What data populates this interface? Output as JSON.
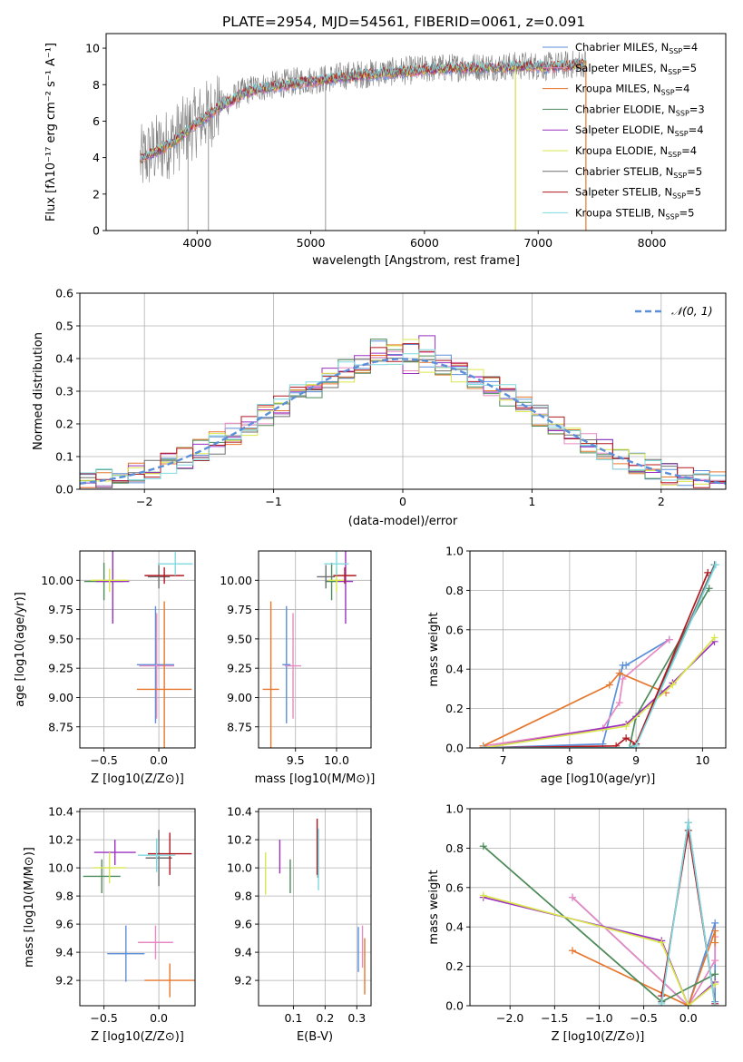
{
  "figure_title": "PLATE=2954, MJD=54561, FIBERID=0061, z=0.091",
  "colors": {
    "Chabrier MILES": "#5b8fd9",
    "Salpeter MILES": "#e78ac3",
    "Kroupa MILES": "#e6772d",
    "Chabrier ELODIE": "#4d8a5a",
    "Salpeter ELODIE": "#9b30c0",
    "Kroupa ELODIE": "#d9e64c",
    "Chabrier STELIB": "#6e6e6e",
    "Salpeter STELIB": "#b01820",
    "Kroupa STELIB": "#7fd9e0"
  },
  "chart_data": [
    {
      "id": "spectrum",
      "type": "line",
      "title": "PLATE=2954, MJD=54561, FIBERID=0061, z=0.091",
      "xlabel": "wavelength [Angstrom, rest frame]",
      "ylabel": "Flux [fλ10⁻¹⁷ erg cm⁻² s⁻¹ A⁻¹]",
      "xlim": [
        3200,
        8650
      ],
      "ylim": [
        0,
        10.8
      ],
      "xticks": [
        4000,
        5000,
        6000,
        7000,
        8000
      ],
      "yticks": [
        0,
        2,
        4,
        6,
        8,
        10
      ],
      "grid": false,
      "legend_position": "right",
      "legend": [
        "Chabrier MILES, N_SSP=4",
        "Salpeter MILES, N_SSP=5",
        "Kroupa MILES, N_SSP=4",
        "Chabrier ELODIE, N_SSP=3",
        "Salpeter ELODIE, N_SSP=4",
        "Kroupa ELODIE, N_SSP=4",
        "Chabrier STELIB, N_SSP=5",
        "Salpeter STELIB, N_SSP=5",
        "Kroupa STELIB, N_SSP=5"
      ],
      "data_x": [
        3500,
        3600,
        3700,
        3800,
        3900,
        4000,
        4100,
        4200,
        4300,
        4400,
        4500,
        4700,
        4900,
        5100,
        5300,
        5500,
        5700,
        5900,
        6100,
        6300,
        6500,
        6700,
        6900,
        7100,
        7300,
        7420
      ],
      "data_y": [
        3.8,
        4.3,
        4.6,
        5.0,
        5.5,
        6.0,
        6.4,
        6.9,
        7.2,
        7.6,
        7.8,
        8.0,
        8.2,
        8.3,
        8.5,
        8.6,
        8.7,
        8.8,
        8.9,
        8.95,
        9.0,
        9.0,
        9.05,
        9.0,
        9.1,
        9.2
      ],
      "model_x": [
        3500,
        3600,
        3700,
        3800,
        3900,
        4000,
        4100,
        4200,
        4300,
        4400,
        4500,
        4700,
        4900,
        5100,
        5300,
        5500,
        5700,
        5900,
        6100,
        6300,
        6500,
        6700,
        6900,
        7100,
        7300,
        7420
      ],
      "model_y": [
        3.9,
        4.2,
        4.5,
        4.9,
        5.4,
        5.9,
        6.3,
        6.8,
        7.1,
        7.5,
        7.7,
        7.9,
        8.1,
        8.25,
        8.4,
        8.55,
        8.65,
        8.75,
        8.85,
        8.9,
        8.95,
        8.95,
        9.0,
        8.95,
        9.05,
        9.1
      ]
    },
    {
      "id": "residuals",
      "type": "line",
      "xlabel": "(data-model)/error",
      "ylabel": "Normed distribution",
      "xlim": [
        -2.5,
        2.5
      ],
      "ylim": [
        0,
        0.6
      ],
      "xticks": [
        -2,
        -1,
        0,
        1,
        2
      ],
      "yticks": [
        0.0,
        0.1,
        0.2,
        0.3,
        0.4,
        0.5,
        0.6
      ],
      "grid": true,
      "legend_position": "top-right",
      "legend": [
        "𝒩(0, 1)"
      ]
    },
    {
      "id": "age_vs_Z",
      "type": "scatter",
      "xlabel": "Z [log10(Z/Z⊙)]",
      "ylabel": "age  [log10(age/yr)]",
      "xlim": [
        -0.72,
        0.33
      ],
      "ylim": [
        8.57,
        10.25
      ],
      "xticks": [
        -0.5,
        0.0
      ],
      "yticks": [
        8.75,
        9.0,
        9.25,
        9.5,
        9.75,
        10.0
      ],
      "grid": true,
      "points": [
        {
          "model": "Chabrier MILES",
          "x": -0.03,
          "y": 9.28,
          "xerr": 0.17,
          "yerr": 0.5
        },
        {
          "model": "Salpeter MILES",
          "x": -0.02,
          "y": 9.27,
          "xerr": 0.16,
          "yerr": 0.45
        },
        {
          "model": "Kroupa MILES",
          "x": 0.05,
          "y": 9.07,
          "xerr": 0.25,
          "yerr": 0.75
        },
        {
          "model": "Chabrier ELODIE",
          "x": -0.5,
          "y": 9.99,
          "xerr": 0.18,
          "yerr": 0.16
        },
        {
          "model": "Salpeter ELODIE",
          "x": -0.42,
          "y": 9.99,
          "xerr": 0.15,
          "yerr": 0.36
        },
        {
          "model": "Kroupa ELODIE",
          "x": -0.45,
          "y": 10.0,
          "xerr": 0.17,
          "yerr": 0.1
        },
        {
          "model": "Chabrier STELIB",
          "x": 0.0,
          "y": 10.03,
          "xerr": 0.1,
          "yerr": 0.1
        },
        {
          "model": "Salpeter STELIB",
          "x": 0.05,
          "y": 10.04,
          "xerr": 0.18,
          "yerr": 0.07
        },
        {
          "model": "Kroupa STELIB",
          "x": 0.15,
          "y": 10.14,
          "xerr": 0.16,
          "yerr": 0.1
        }
      ]
    },
    {
      "id": "age_vs_mass",
      "type": "scatter",
      "xlabel": "mass [log10(M/M⊙)]",
      "ylabel": "",
      "xlim": [
        9.05,
        10.42
      ],
      "ylim": [
        8.57,
        10.25
      ],
      "xticks": [
        9.5,
        10.0
      ],
      "yticks": [
        8.75,
        9.0,
        9.25,
        9.5,
        9.75,
        10.0
      ],
      "grid": true,
      "points": [
        {
          "model": "Chabrier MILES",
          "x": 9.39,
          "y": 9.28,
          "xerr": 0.05,
          "yerr": 0.5
        },
        {
          "model": "Salpeter MILES",
          "x": 9.47,
          "y": 9.27,
          "xerr": 0.1,
          "yerr": 0.45
        },
        {
          "model": "Kroupa MILES",
          "x": 9.2,
          "y": 9.07,
          "xerr": 0.1,
          "yerr": 0.75
        },
        {
          "model": "Chabrier ELODIE",
          "x": 9.94,
          "y": 9.99,
          "xerr": 0.08,
          "yerr": 0.16
        },
        {
          "model": "Salpeter ELODIE",
          "x": 10.11,
          "y": 9.99,
          "xerr": 0.09,
          "yerr": 0.36
        },
        {
          "model": "Kroupa ELODIE",
          "x": 10.0,
          "y": 10.0,
          "xerr": 0.1,
          "yerr": 0.1
        },
        {
          "model": "Chabrier STELIB",
          "x": 9.87,
          "y": 10.03,
          "xerr": 0.11,
          "yerr": 0.1
        },
        {
          "model": "Salpeter STELIB",
          "x": 10.1,
          "y": 10.04,
          "xerr": 0.14,
          "yerr": 0.07
        },
        {
          "model": "Kroupa STELIB",
          "x": 10.0,
          "y": 10.14,
          "xerr": 0.15,
          "yerr": 0.1
        }
      ]
    },
    {
      "id": "massweight_vs_age",
      "type": "line",
      "xlabel": "age  [log10(age/yr)]",
      "ylabel": "mass weight",
      "xlim": [
        6.5,
        10.35
      ],
      "ylim": [
        0,
        1.0
      ],
      "xticks": [
        7,
        8,
        9,
        10
      ],
      "yticks": [
        0.0,
        0.2,
        0.4,
        0.6,
        0.8,
        1.0
      ],
      "grid": true,
      "series": [
        {
          "model": "Chabrier MILES",
          "x": [
            6.7,
            8.5,
            8.8,
            8.85,
            9.5
          ],
          "y": [
            0.0,
            0.02,
            0.42,
            0.42,
            0.55
          ]
        },
        {
          "model": "Salpeter MILES",
          "x": [
            6.7,
            8.5,
            8.75,
            8.8,
            9.5
          ],
          "y": [
            0.01,
            0.1,
            0.23,
            0.35,
            0.55
          ]
        },
        {
          "model": "Kroupa MILES",
          "x": [
            6.7,
            8.6,
            8.75,
            9.45
          ],
          "y": [
            0.01,
            0.32,
            0.38,
            0.28
          ]
        },
        {
          "model": "Chabrier ELODIE",
          "x": [
            6.7,
            8.9,
            9.0,
            10.1
          ],
          "y": [
            0.0,
            0.0,
            0.16,
            0.81
          ]
        },
        {
          "model": "Salpeter ELODIE",
          "x": [
            6.7,
            8.85,
            9.55,
            10.18
          ],
          "y": [
            0.0,
            0.12,
            0.33,
            0.54
          ]
        },
        {
          "model": "Kroupa ELODIE",
          "x": [
            6.7,
            8.85,
            9.55,
            10.18
          ],
          "y": [
            0.0,
            0.11,
            0.32,
            0.56
          ]
        },
        {
          "model": "Chabrier STELIB",
          "x": [
            6.7,
            8.9,
            9.0,
            10.18
          ],
          "y": [
            0.0,
            0.0,
            0.02,
            0.93
          ]
        },
        {
          "model": "Salpeter STELIB",
          "x": [
            6.7,
            8.7,
            8.85,
            9.0,
            10.08
          ],
          "y": [
            0.0,
            0.01,
            0.05,
            0.02,
            0.89
          ]
        },
        {
          "model": "Kroupa STELIB",
          "x": [
            6.7,
            8.9,
            9.0,
            10.2
          ],
          "y": [
            0.0,
            0.0,
            0.01,
            0.93
          ]
        }
      ]
    },
    {
      "id": "mass_vs_Z",
      "type": "scatter",
      "xlabel": "Z [log10(Z/Z⊙)]",
      "ylabel": "mass [log10(M/M⊙)]",
      "xlim": [
        -0.72,
        0.33
      ],
      "ylim": [
        9.02,
        10.42
      ],
      "xticks": [
        -0.5,
        0.0
      ],
      "yticks": [
        9.2,
        9.4,
        9.6,
        9.8,
        10.0,
        10.2,
        10.4
      ],
      "grid": true,
      "points": [
        {
          "model": "Chabrier MILES",
          "x": -0.3,
          "y": 9.39,
          "xerr": 0.17,
          "yerr": 0.2
        },
        {
          "model": "Salpeter MILES",
          "x": -0.03,
          "y": 9.47,
          "xerr": 0.16,
          "yerr": 0.12
        },
        {
          "model": "Kroupa MILES",
          "x": 0.1,
          "y": 9.2,
          "xerr": 0.23,
          "yerr": 0.12
        },
        {
          "model": "Chabrier ELODIE",
          "x": -0.52,
          "y": 9.94,
          "xerr": 0.17,
          "yerr": 0.12
        },
        {
          "model": "Salpeter ELODIE",
          "x": -0.4,
          "y": 10.11,
          "xerr": 0.19,
          "yerr": 0.09
        },
        {
          "model": "Kroupa ELODIE",
          "x": -0.45,
          "y": 10.0,
          "xerr": 0.15,
          "yerr": 0.11
        },
        {
          "model": "Chabrier STELIB",
          "x": 0.0,
          "y": 10.07,
          "xerr": 0.12,
          "yerr": 0.2
        },
        {
          "model": "Salpeter STELIB",
          "x": 0.1,
          "y": 10.1,
          "xerr": 0.2,
          "yerr": 0.15
        },
        {
          "model": "Kroupa STELIB",
          "x": -0.02,
          "y": 10.09,
          "xerr": 0.17,
          "yerr": 0.12
        }
      ]
    },
    {
      "id": "mass_vs_EBV",
      "type": "scatter",
      "xlabel": "E(B-V)",
      "ylabel": "",
      "xlim": [
        -0.01,
        0.345
      ],
      "ylim": [
        9.02,
        10.42
      ],
      "xticks": [
        0.1,
        0.2,
        0.3
      ],
      "yticks": [
        9.2,
        9.4,
        9.6,
        9.8,
        10.0,
        10.2,
        10.4
      ],
      "grid": true,
      "points": [
        {
          "model": "Chabrier MILES",
          "x": 0.305,
          "y": 9.42,
          "xerr": 0,
          "yerr": 0.16
        },
        {
          "model": "Salpeter MILES",
          "x": 0.318,
          "y": 9.44,
          "xerr": 0,
          "yerr": 0.15
        },
        {
          "model": "Kroupa MILES",
          "x": 0.325,
          "y": 9.3,
          "xerr": 0,
          "yerr": 0.2
        },
        {
          "model": "Chabrier ELODIE",
          "x": 0.09,
          "y": 9.94,
          "xerr": 0,
          "yerr": 0.12
        },
        {
          "model": "Salpeter ELODIE",
          "x": 0.057,
          "y": 10.08,
          "xerr": 0,
          "yerr": 0.12
        },
        {
          "model": "Kroupa ELODIE",
          "x": 0.012,
          "y": 9.96,
          "xerr": 0,
          "yerr": 0.15
        },
        {
          "model": "Chabrier STELIB",
          "x": 0.177,
          "y": 10.1,
          "xerr": 0,
          "yerr": 0.17
        },
        {
          "model": "Salpeter STELIB",
          "x": 0.175,
          "y": 10.15,
          "xerr": 0,
          "yerr": 0.2
        },
        {
          "model": "Kroupa STELIB",
          "x": 0.179,
          "y": 10.06,
          "xerr": 0,
          "yerr": 0.22
        }
      ]
    },
    {
      "id": "massweight_vs_Z",
      "type": "line",
      "xlabel": "Z [log10(Z/Z⊙)]",
      "ylabel": "mass weight",
      "xlim": [
        -2.45,
        0.42
      ],
      "ylim": [
        0,
        1.0
      ],
      "xticks": [
        -2.0,
        -1.5,
        -1.0,
        -0.5,
        0.0
      ],
      "yticks": [
        0.0,
        0.2,
        0.4,
        0.6,
        0.8,
        1.0
      ],
      "grid": true,
      "series": [
        {
          "model": "Chabrier MILES",
          "x": [
            -1.3,
            0.0,
            0.3,
            0.3
          ],
          "y": [
            0.55,
            0.0,
            0.42,
            0.02
          ]
        },
        {
          "model": "Salpeter MILES",
          "x": [
            -1.3,
            0.0,
            0.3,
            0.3
          ],
          "y": [
            0.55,
            0.0,
            0.23,
            0.35
          ]
        },
        {
          "model": "Kroupa MILES",
          "x": [
            -1.3,
            0.0,
            0.3,
            0.3
          ],
          "y": [
            0.28,
            0.0,
            0.38,
            0.32
          ]
        },
        {
          "model": "Chabrier ELODIE",
          "x": [
            -2.3,
            -0.3,
            0.3
          ],
          "y": [
            0.81,
            0.02,
            0.16
          ]
        },
        {
          "model": "Salpeter ELODIE",
          "x": [
            -2.3,
            -0.3,
            0.0,
            0.3
          ],
          "y": [
            0.55,
            0.33,
            0.0,
            0.12
          ]
        },
        {
          "model": "Kroupa ELODIE",
          "x": [
            -2.3,
            -0.3,
            0.0,
            0.3
          ],
          "y": [
            0.56,
            0.32,
            0.0,
            0.11
          ]
        },
        {
          "model": "Chabrier STELIB",
          "x": [
            -0.3,
            0.0,
            0.3
          ],
          "y": [
            0.02,
            0.93,
            0.0
          ]
        },
        {
          "model": "Salpeter STELIB",
          "x": [
            -0.3,
            0.0,
            0.3
          ],
          "y": [
            0.05,
            0.89,
            0.01
          ]
        },
        {
          "model": "Kroupa STELIB",
          "x": [
            -0.3,
            0.0,
            0.3
          ],
          "y": [
            0.01,
            0.93,
            0.0
          ]
        }
      ]
    }
  ]
}
